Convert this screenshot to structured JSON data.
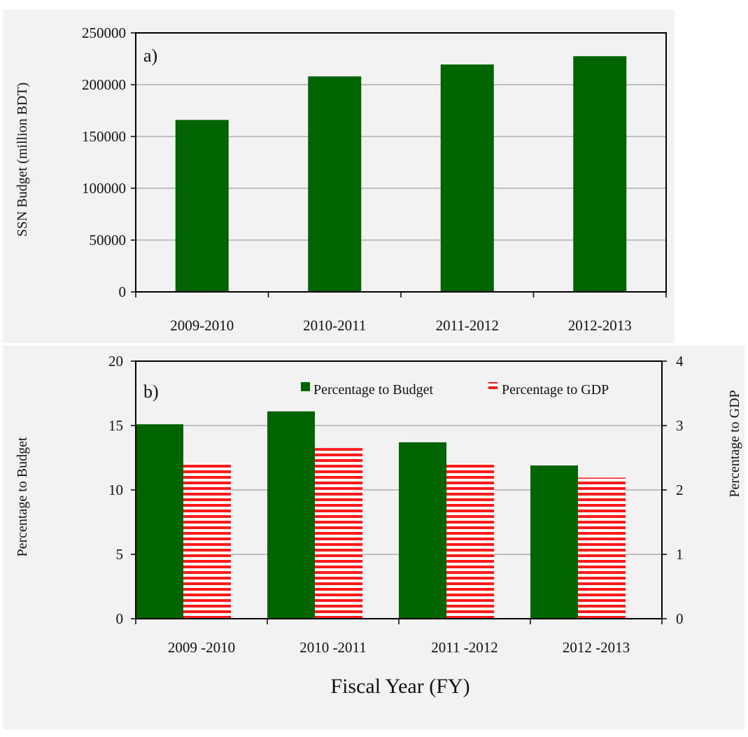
{
  "colors": {
    "background": "#f2f2f2",
    "budget_bar": "#006400",
    "gdp_bar_red": "#ff1a1a",
    "gdp_bar_white": "#ffffff",
    "gridline": "#8c8c8c",
    "axis": "#000000"
  },
  "xlabel": "Fiscal Year (FY)",
  "chart_data": [
    {
      "panel": "a)",
      "type": "bar",
      "categories": [
        "2009-2010",
        "2010-2011",
        "2011-2012",
        "2012-2013"
      ],
      "values": [
        166000,
        208000,
        219500,
        227500
      ],
      "ylabel": "SSN Budget (million BDT)",
      "ylim": [
        0,
        250000
      ],
      "yticks": [
        "0",
        "50000",
        "100000",
        "150000",
        "200000",
        "250000"
      ],
      "grid": true
    },
    {
      "panel": "b)",
      "type": "bar",
      "categories": [
        "2009 -2010",
        "2010 -2011",
        "2011 -2012",
        "2012 -2013"
      ],
      "series": [
        {
          "name": "Percentage to Budget",
          "axis": "left",
          "values": [
            15.1,
            16.1,
            13.7,
            11.9
          ]
        },
        {
          "name": "Percentage to GDP",
          "axis": "right",
          "values": [
            2.43,
            2.65,
            2.41,
            2.19
          ]
        }
      ],
      "ylabel": "Percentage to Budget",
      "y2label": "Percentage to GDP",
      "ylim": [
        0,
        20
      ],
      "y2lim": [
        0,
        4
      ],
      "yticks": [
        "0",
        "5",
        "10",
        "15",
        "20"
      ],
      "y2ticks": [
        "0",
        "1",
        "2",
        "3",
        "4"
      ],
      "legend_position": "top-right",
      "grid": true
    }
  ]
}
